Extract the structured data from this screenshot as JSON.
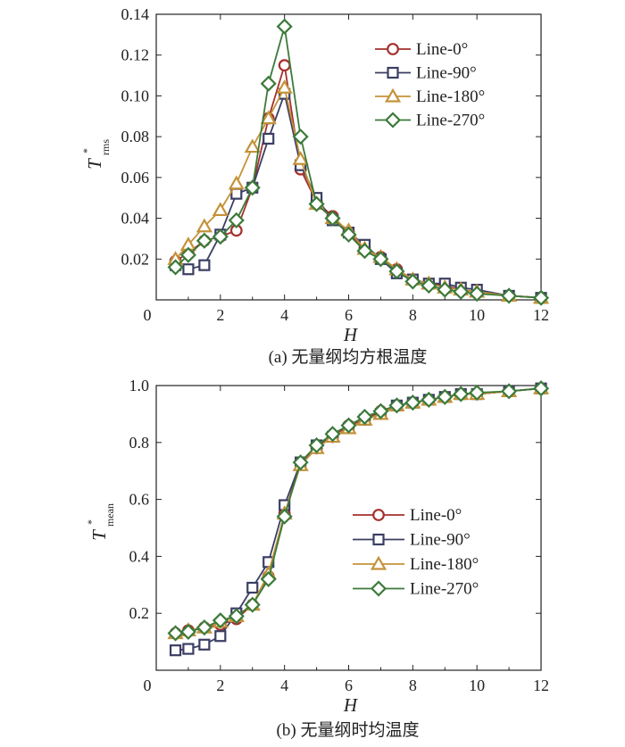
{
  "colors": {
    "Line-0°": "#a4302c",
    "Line-90°": "#3b3e63",
    "Line-180°": "#c4923a",
    "Line-270°": "#3c7a3a"
  },
  "chart_data": [
    {
      "type": "line",
      "caption": "(a) 无量纲均方根温度",
      "xlabel": "H",
      "ylabel": "T",
      "ylabel_sup": "*",
      "ylabel_sub": "rms",
      "xlim": [
        0,
        12
      ],
      "ylim": [
        0,
        0.14
      ],
      "xticks": [
        "0",
        "2",
        "4",
        "6",
        "8",
        "10",
        "12"
      ],
      "yticks": [
        "0.02",
        "0.04",
        "0.06",
        "0.08",
        "0.10",
        "0.12",
        "0.14"
      ],
      "ytick_values": [
        0.02,
        0.04,
        0.06,
        0.08,
        0.1,
        0.12,
        0.14
      ],
      "legend_position": "top-right",
      "series": [
        {
          "name": "Line-0°",
          "marker": "circle",
          "x": [
            0.6,
            1.0,
            1.5,
            2.0,
            2.5,
            3.0,
            3.5,
            4.0,
            4.5,
            5.0,
            5.5,
            6.0,
            6.5,
            7.0,
            7.5,
            8.0,
            8.5,
            9.0,
            9.5,
            10.0,
            11.0,
            12.0
          ],
          "y": [
            0.019,
            0.023,
            0.029,
            0.031,
            0.034,
            0.055,
            0.089,
            0.115,
            0.064,
            0.048,
            0.041,
            0.033,
            0.025,
            0.021,
            0.015,
            0.01,
            0.008,
            0.007,
            0.005,
            0.004,
            0.002,
            0.001
          ]
        },
        {
          "name": "Line-90°",
          "marker": "square",
          "x": [
            0.6,
            1.0,
            1.5,
            2.0,
            2.5,
            3.0,
            3.5,
            4.0,
            4.5,
            5.0,
            5.5,
            6.0,
            6.5,
            7.0,
            7.5,
            8.0,
            8.5,
            9.0,
            9.5,
            10.0,
            11.0,
            12.0
          ],
          "y": [
            0.017,
            0.015,
            0.017,
            0.032,
            0.052,
            0.055,
            0.079,
            0.101,
            0.066,
            0.05,
            0.039,
            0.033,
            0.027,
            0.02,
            0.013,
            0.01,
            0.008,
            0.008,
            0.006,
            0.005,
            0.002,
            0.001
          ]
        },
        {
          "name": "Line-180°",
          "marker": "triangle",
          "x": [
            0.6,
            1.0,
            1.5,
            2.0,
            2.5,
            3.0,
            3.5,
            4.0,
            4.5,
            5.0,
            5.5,
            6.0,
            6.5,
            7.0,
            7.5,
            8.0,
            8.5,
            9.0,
            9.5,
            10.0,
            11.0,
            12.0
          ],
          "y": [
            0.02,
            0.027,
            0.036,
            0.044,
            0.057,
            0.075,
            0.089,
            0.104,
            0.069,
            0.047,
            0.04,
            0.034,
            0.025,
            0.021,
            0.015,
            0.01,
            0.008,
            0.006,
            0.005,
            0.004,
            0.002,
            0.001
          ]
        },
        {
          "name": "Line-270°",
          "marker": "diamond",
          "x": [
            0.6,
            1.0,
            1.5,
            2.0,
            2.5,
            3.0,
            3.5,
            4.0,
            4.5,
            5.0,
            5.5,
            6.0,
            6.5,
            7.0,
            7.5,
            8.0,
            8.5,
            9.0,
            9.5,
            10.0,
            11.0,
            12.0
          ],
          "y": [
            0.016,
            0.022,
            0.029,
            0.031,
            0.039,
            0.055,
            0.106,
            0.134,
            0.08,
            0.047,
            0.04,
            0.032,
            0.024,
            0.02,
            0.014,
            0.009,
            0.007,
            0.005,
            0.004,
            0.003,
            0.002,
            0.001
          ]
        }
      ]
    },
    {
      "type": "line",
      "caption": "(b) 无量纲时均温度",
      "xlabel": "H",
      "ylabel": "T",
      "ylabel_sup": "*",
      "ylabel_sub": "mean",
      "xlim": [
        0,
        12
      ],
      "ylim": [
        0,
        1.0
      ],
      "xticks": [
        "0",
        "2",
        "4",
        "6",
        "8",
        "10",
        "12"
      ],
      "yticks": [
        "0.2",
        "0.4",
        "0.6",
        "0.8",
        "1.0"
      ],
      "ytick_values": [
        0.2,
        0.4,
        0.6,
        0.8,
        1.0
      ],
      "legend_position": "bottom-right",
      "series": [
        {
          "name": "Line-0°",
          "marker": "circle",
          "x": [
            0.6,
            1.0,
            1.5,
            2.0,
            2.5,
            3.0,
            3.5,
            4.0,
            4.5,
            5.0,
            5.5,
            6.0,
            6.5,
            7.0,
            7.5,
            8.0,
            8.5,
            9.0,
            9.5,
            10.0,
            11.0,
            12.0
          ],
          "y": [
            0.13,
            0.14,
            0.15,
            0.16,
            0.18,
            0.23,
            0.33,
            0.55,
            0.73,
            0.78,
            0.82,
            0.86,
            0.88,
            0.91,
            0.93,
            0.94,
            0.95,
            0.96,
            0.97,
            0.97,
            0.98,
            0.99
          ]
        },
        {
          "name": "Line-90°",
          "marker": "square",
          "x": [
            0.6,
            1.0,
            1.5,
            2.0,
            2.5,
            3.0,
            3.5,
            4.0,
            4.5,
            5.0,
            5.5,
            6.0,
            6.5,
            7.0,
            7.5,
            8.0,
            8.5,
            9.0,
            9.5,
            10.0,
            11.0,
            12.0
          ],
          "y": [
            0.07,
            0.075,
            0.09,
            0.12,
            0.2,
            0.29,
            0.38,
            0.58,
            0.73,
            0.79,
            0.82,
            0.85,
            0.88,
            0.9,
            0.93,
            0.94,
            0.95,
            0.96,
            0.97,
            0.97,
            0.98,
            0.99
          ]
        },
        {
          "name": "Line-180°",
          "marker": "triangle",
          "x": [
            0.6,
            1.0,
            1.5,
            2.0,
            2.5,
            3.0,
            3.5,
            4.0,
            4.5,
            5.0,
            5.5,
            6.0,
            6.5,
            7.0,
            7.5,
            8.0,
            8.5,
            9.0,
            9.5,
            10.0,
            11.0,
            12.0
          ],
          "y": [
            0.13,
            0.14,
            0.15,
            0.17,
            0.19,
            0.23,
            0.34,
            0.55,
            0.72,
            0.78,
            0.82,
            0.85,
            0.88,
            0.9,
            0.93,
            0.94,
            0.95,
            0.96,
            0.97,
            0.97,
            0.98,
            0.99
          ]
        },
        {
          "name": "Line-270°",
          "marker": "diamond",
          "x": [
            0.6,
            1.0,
            1.5,
            2.0,
            2.5,
            3.0,
            3.5,
            4.0,
            4.5,
            5.0,
            5.5,
            6.0,
            6.5,
            7.0,
            7.5,
            8.0,
            8.5,
            9.0,
            9.5,
            10.0,
            11.0,
            12.0
          ],
          "y": [
            0.13,
            0.135,
            0.15,
            0.175,
            0.19,
            0.23,
            0.32,
            0.54,
            0.73,
            0.79,
            0.83,
            0.86,
            0.89,
            0.91,
            0.93,
            0.94,
            0.95,
            0.96,
            0.97,
            0.975,
            0.98,
            0.99
          ]
        }
      ]
    }
  ]
}
